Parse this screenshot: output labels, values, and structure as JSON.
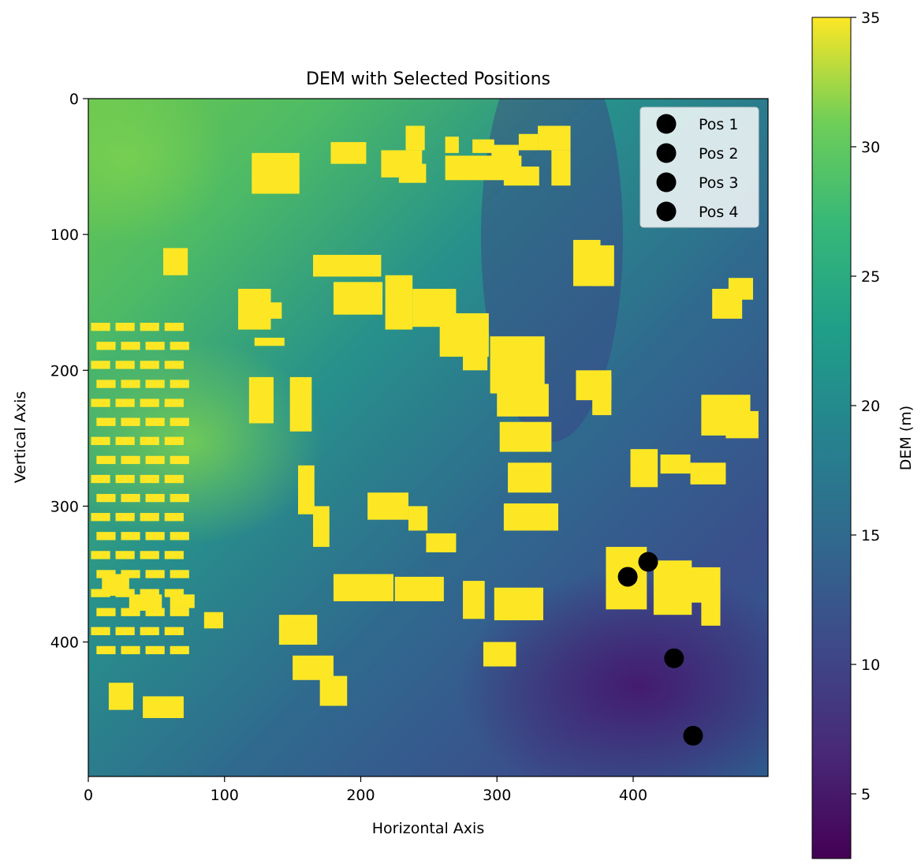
{
  "chart_data": {
    "type": "heatmap",
    "title": "DEM with Selected Positions",
    "xlabel": "Horizontal Axis",
    "ylabel": "Vertical Axis",
    "xlim": [
      0,
      499
    ],
    "ylim": [
      499,
      0
    ],
    "x_ticks": [
      0,
      100,
      200,
      300,
      400
    ],
    "y_ticks": [
      0,
      100,
      200,
      300,
      400
    ],
    "colormap": "viridis",
    "colorbar": {
      "label": "DEM (m)",
      "range": [
        2.5,
        35
      ],
      "ticks": [
        5,
        10,
        15,
        20,
        25,
        30,
        35
      ]
    },
    "legend": {
      "placement": "upper-right"
    },
    "series": [
      {
        "name": "Pos 1",
        "type": "scatter",
        "x": [
          396
        ],
        "y": [
          352
        ],
        "color": "#000000"
      },
      {
        "name": "Pos 2",
        "type": "scatter",
        "x": [
          411
        ],
        "y": [
          341
        ],
        "color": "#000000"
      },
      {
        "name": "Pos 3",
        "type": "scatter",
        "x": [
          430
        ],
        "y": [
          412
        ],
        "color": "#000000"
      },
      {
        "name": "Pos 4",
        "type": "scatter",
        "x": [
          444
        ],
        "y": [
          469
        ],
        "color": "#000000"
      }
    ],
    "building_value": 35
  }
}
